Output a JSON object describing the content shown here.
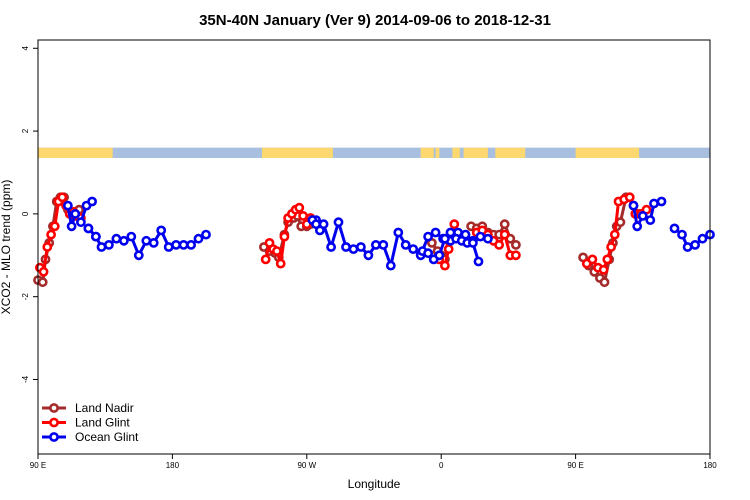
{
  "chart_data": {
    "type": "line",
    "title": "35N-40N January (Ver 9)   2014-09-06 to 2018-12-31",
    "xlabel": "Longitude",
    "ylabel": "XCO2 - MLO trend (ppm)",
    "xlim": [
      90,
      450
    ],
    "ylim": [
      -5.8,
      4.2
    ],
    "x_ticks": [
      {
        "value": 90,
        "label": "90 E"
      },
      {
        "value": 162,
        "label": "180"
      },
      {
        "value": 234,
        "label": "90 W"
      },
      {
        "value": 306,
        "label": "0"
      },
      {
        "value": 378,
        "label": "90 E"
      },
      {
        "value": 450,
        "label": "180"
      }
    ],
    "y_ticks": [
      {
        "value": 4,
        "label": "4"
      },
      {
        "value": 2,
        "label": "2"
      },
      {
        "value": 0,
        "label": "0"
      },
      {
        "value": -2,
        "label": "-2"
      },
      {
        "value": -4,
        "label": "-4"
      }
    ],
    "legend_position": "bottom-left",
    "land_ocean_strip": {
      "y_range": [
        1.35,
        1.6
      ],
      "ocean_color": "#a9bfdf",
      "land_color": "#fdd870",
      "land_segments": [
        [
          90,
          130
        ],
        [
          210,
          248
        ],
        [
          295,
          302
        ],
        [
          303,
          305
        ],
        [
          312,
          316
        ],
        [
          318,
          331
        ],
        [
          335,
          351
        ],
        [
          378,
          412
        ]
      ]
    },
    "series": [
      {
        "name": "Land Nadir",
        "color": "#a52a2a",
        "segments": [
          [
            [
              90,
              -1.6
            ],
            [
              92.5,
              -1.65
            ],
            [
              94,
              -1.1
            ],
            [
              96,
              -0.7
            ],
            [
              98,
              -0.3
            ],
            [
              100,
              0.3
            ],
            [
              102,
              0.4
            ],
            [
              104,
              0.4
            ],
            [
              106,
              0.1
            ],
            [
              108,
              0.0
            ],
            [
              110,
              -0.05
            ],
            [
              112,
              0.1
            ]
          ],
          [
            [
              211,
              -0.8
            ],
            [
              214,
              -0.9
            ],
            [
              217,
              -0.95
            ],
            [
              219,
              -1.05
            ],
            [
              222,
              -0.5
            ],
            [
              224,
              -0.2
            ],
            [
              227,
              -0.1
            ],
            [
              229,
              -0.05
            ],
            [
              231,
              -0.3
            ],
            [
              234,
              -0.3
            ],
            [
              236,
              -0.25
            ]
          ],
          [
            [
              301,
              -0.7
            ],
            [
              304,
              -0.9
            ],
            [
              306,
              -1.0
            ],
            [
              308,
              -1.1
            ],
            [
              310,
              -0.65
            ]
          ],
          [
            [
              322,
              -0.3
            ],
            [
              325,
              -0.35
            ],
            [
              328,
              -0.3
            ],
            [
              331,
              -0.45
            ],
            [
              334,
              -0.5
            ],
            [
              337,
              -0.5
            ],
            [
              340,
              -0.25
            ],
            [
              343,
              -0.6
            ],
            [
              346,
              -0.75
            ]
          ],
          [
            [
              382,
              -1.05
            ],
            [
              385,
              -1.25
            ],
            [
              388,
              -1.4
            ],
            [
              391,
              -1.55
            ],
            [
              393.5,
              -1.65
            ],
            [
              396,
              -1.1
            ],
            [
              398,
              -0.7
            ],
            [
              400,
              -0.3
            ],
            [
              402,
              -0.2
            ],
            [
              405,
              0.4
            ],
            [
              407,
              0.4
            ],
            [
              409,
              0.2
            ],
            [
              412,
              0.0
            ]
          ]
        ]
      },
      {
        "name": "Land Glint",
        "color": "#ff0000",
        "segments": [
          [
            [
              91,
              -1.3
            ],
            [
              93,
              -1.4
            ],
            [
              95,
              -0.8
            ],
            [
              97,
              -0.5
            ],
            [
              99,
              -0.3
            ],
            [
              101,
              0.3
            ],
            [
              103,
              0.4
            ],
            [
              105,
              0.2
            ],
            [
              107,
              0.0
            ],
            [
              109,
              0.05
            ],
            [
              111,
              -0.05
            ],
            [
              113,
              -0.1
            ]
          ],
          [
            [
              212,
              -1.1
            ],
            [
              214,
              -0.7
            ],
            [
              216,
              -0.85
            ],
            [
              218,
              -0.9
            ],
            [
              220,
              -1.2
            ],
            [
              222,
              -0.55
            ],
            [
              224,
              -0.1
            ],
            [
              226,
              0.0
            ],
            [
              228,
              0.1
            ],
            [
              230,
              0.15
            ],
            [
              232,
              -0.05
            ],
            [
              234,
              -0.25
            ],
            [
              236,
              -0.1
            ],
            [
              238,
              -0.2
            ]
          ],
          [
            [
              305,
              -1.1
            ],
            [
              308,
              -1.25
            ],
            [
              310,
              -0.85
            ],
            [
              313,
              -0.25
            ]
          ],
          [
            [
              325,
              -0.45
            ],
            [
              328,
              -0.4
            ],
            [
              331,
              -0.5
            ],
            [
              334,
              -0.65
            ],
            [
              337,
              -0.75
            ],
            [
              340,
              -0.5
            ],
            [
              343,
              -1.0
            ],
            [
              346,
              -1.0
            ]
          ],
          [
            [
              384,
              -1.2
            ],
            [
              387,
              -1.1
            ],
            [
              390,
              -1.3
            ],
            [
              393,
              -1.35
            ],
            [
              395,
              -1.1
            ],
            [
              397,
              -0.8
            ],
            [
              399,
              -0.5
            ],
            [
              401,
              0.3
            ],
            [
              404,
              0.35
            ],
            [
              407,
              0.4
            ],
            [
              410,
              0.0
            ],
            [
              413,
              0.0
            ],
            [
              416,
              0.1
            ]
          ]
        ]
      },
      {
        "name": "Ocean Glint",
        "color": "#0000ee",
        "segments": [
          [
            [
              117,
              -0.35
            ],
            [
              121,
              -0.55
            ],
            [
              124,
              -0.8
            ],
            [
              128,
              -0.75
            ],
            [
              132,
              -0.6
            ],
            [
              136,
              -0.65
            ],
            [
              140,
              -0.55
            ],
            [
              144,
              -1.0
            ],
            [
              148,
              -0.65
            ],
            [
              152,
              -0.7
            ],
            [
              156,
              -0.4
            ],
            [
              160,
              -0.8
            ],
            [
              164,
              -0.75
            ],
            [
              168,
              -0.75
            ],
            [
              172,
              -0.75
            ],
            [
              176,
              -0.6
            ],
            [
              180,
              -0.5
            ]
          ],
          [
            [
              117,
              -0.35
            ],
            [
              121,
              -0.55
            ]
          ],
          [
            [
              239,
              -0.15
            ],
            [
              243,
              -0.25
            ],
            [
              247,
              -0.8
            ],
            [
              251,
              -0.2
            ],
            [
              255,
              -0.8
            ],
            [
              259,
              -0.85
            ],
            [
              263,
              -0.8
            ],
            [
              267,
              -1.0
            ],
            [
              271,
              -0.75
            ],
            [
              275,
              -0.75
            ],
            [
              279,
              -1.25
            ],
            [
              283,
              -0.45
            ],
            [
              287,
              -0.75
            ],
            [
              291,
              -0.85
            ],
            [
              295,
              -1.0
            ],
            [
              299,
              -0.55
            ],
            [
              303,
              -0.45
            ],
            [
              307,
              -0.6
            ],
            [
              311,
              -0.65
            ],
            [
              315,
              -0.45
            ],
            [
              319,
              -0.5
            ],
            [
              323,
              -0.65
            ],
            [
              327,
              -0.55
            ],
            [
              331,
              -0.6
            ]
          ],
          [
            [
              106,
              0.2
            ],
            [
              108,
              -0.3
            ],
            [
              110,
              0.0
            ]
          ],
          [
            [
              237,
              -0.15
            ],
            [
              239,
              -0.25
            ],
            [
              241,
              -0.4
            ]
          ],
          [
            [
              296,
              -0.9
            ],
            [
              299,
              -0.95
            ],
            [
              302,
              -1.1
            ],
            [
              305,
              -1.0
            ],
            [
              308,
              -0.6
            ],
            [
              311,
              -0.45
            ],
            [
              314,
              -0.6
            ],
            [
              317,
              -0.65
            ],
            [
              320,
              -0.7
            ],
            [
              323,
              -0.7
            ],
            [
              326,
              -1.15
            ]
          ],
          [
            [
              409,
              0.2
            ],
            [
              411,
              -0.3
            ],
            [
              414,
              -0.05
            ],
            [
              418,
              -0.15
            ],
            [
              420,
              0.25
            ],
            [
              424,
              0.3
            ]
          ],
          [
            [
              431,
              -0.35
            ],
            [
              435,
              -0.5
            ],
            [
              438,
              -0.8
            ],
            [
              442,
              -0.75
            ],
            [
              446,
              -0.6
            ],
            [
              450,
              -0.5
            ]
          ],
          [
            [
              113,
              -0.2
            ],
            [
              116,
              0.2
            ],
            [
              119,
              0.3
            ]
          ]
        ]
      }
    ]
  }
}
